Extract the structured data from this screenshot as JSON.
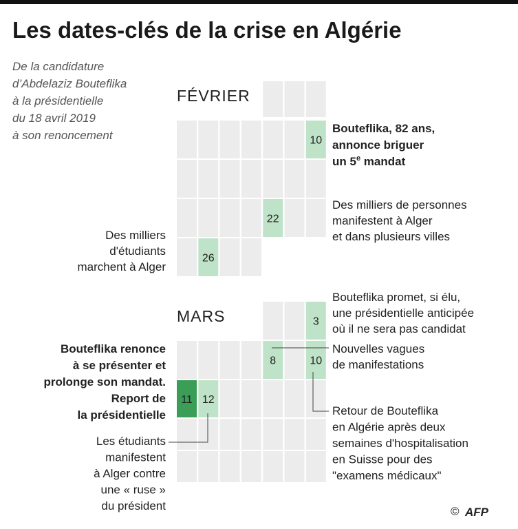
{
  "title": "Les dates-clés de la crise en Algérie",
  "subtitle": [
    "De la candidature",
    "d’Abdelaziz Bouteflika",
    "à la présidentielle",
    "du 18 avril 2019",
    "à son renoncement"
  ],
  "months": [
    {
      "name": "FÉVRIER",
      "length": 28,
      "marked": [
        10,
        22,
        26
      ]
    },
    {
      "name": "MARS",
      "length": 31,
      "marked": [
        3,
        8,
        10,
        11,
        12
      ],
      "key_day": 11
    }
  ],
  "annotations": {
    "feb10": {
      "lines": [
        "Bouteflika, 82 ans,",
        "annonce briguer"
      ],
      "last": [
        "un 5",
        "e",
        " mandat"
      ]
    },
    "feb22": [
      "Des milliers de personnes",
      "manifestent à Alger",
      "et dans plusieurs villes"
    ],
    "feb26": [
      "Des milliers",
      "d'étudiants",
      "marchent à Alger"
    ],
    "mar3": [
      "Bouteflika promet, si élu,",
      "une présidentielle anticipée",
      "où il ne sera pas candidat"
    ],
    "mar8": [
      "Nouvelles vagues",
      "de manifestations"
    ],
    "mar10": [
      "Retour de Bouteflika",
      "en Algérie après deux",
      "semaines d'hospitalisation",
      "en Suisse pour des",
      "\"examens médicaux\""
    ],
    "mar11": [
      "Bouteflika renonce",
      "à se présenter et",
      "prolonge son mandat.",
      "Report de",
      "la présidentielle"
    ],
    "mar12": [
      "Les étudiants",
      "manifestent",
      "à Alger contre",
      "une « ruse »",
      "du président"
    ]
  },
  "copyright": "©",
  "credit": "AFP"
}
